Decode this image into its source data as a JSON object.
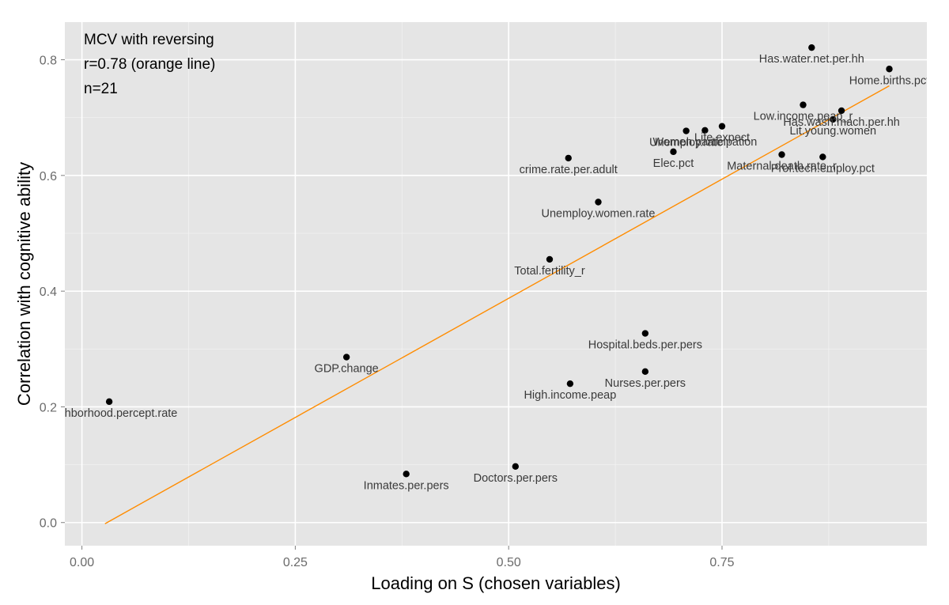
{
  "chart_data": {
    "type": "scatter",
    "xlabel": "Loading on S (chosen variables)",
    "ylabel": "Correlation with cognitive ability",
    "xlim": [
      -0.02,
      0.99
    ],
    "ylim": [
      -0.04,
      0.865
    ],
    "xticks": [
      0.0,
      0.25,
      0.5,
      0.75
    ],
    "xtick_labels": [
      "0.00",
      "0.25",
      "0.50",
      "0.75"
    ],
    "yticks": [
      0.0,
      0.2,
      0.4,
      0.6,
      0.8
    ],
    "ytick_labels": [
      "0.0",
      "0.2",
      "0.4",
      "0.6",
      "0.8"
    ],
    "grid": true,
    "annotations": [
      "MCV with reversing",
      "r=0.78 (orange line)",
      "n=21"
    ],
    "fit_line": {
      "color": "#ff8c00",
      "x": [
        0.027,
        0.946
      ],
      "y": [
        -0.002,
        0.755
      ]
    },
    "points": [
      {
        "label": "Has.water.net.per.hh",
        "x": 0.855,
        "y": 0.821
      },
      {
        "label": "Home.births.pct",
        "x": 0.946,
        "y": 0.784
      },
      {
        "label": "Low.income.peap_r",
        "x": 0.845,
        "y": 0.722
      },
      {
        "label": "Has.wash.mach.per.hh",
        "x": 0.89,
        "y": 0.712
      },
      {
        "label": "Lit.young.women",
        "x": 0.88,
        "y": 0.697
      },
      {
        "label": "Life.expect",
        "x": 0.75,
        "y": 0.685
      },
      {
        "label": "Women.participation",
        "x": 0.73,
        "y": 0.678
      },
      {
        "label": "Unemploy.rate",
        "x": 0.708,
        "y": 0.677
      },
      {
        "label": "Elec.pct",
        "x": 0.693,
        "y": 0.641
      },
      {
        "label": "Maternal.death.rate_r",
        "x": 0.82,
        "y": 0.636
      },
      {
        "label": "Prof.tech.employ.pct",
        "x": 0.868,
        "y": 0.632
      },
      {
        "label": "crime.rate.per.adult",
        "x": 0.57,
        "y": 0.63
      },
      {
        "label": "Unemploy.women.rate",
        "x": 0.605,
        "y": 0.554
      },
      {
        "label": "Total.fertility_r",
        "x": 0.548,
        "y": 0.455
      },
      {
        "label": "Hospital.beds.per.pers",
        "x": 0.66,
        "y": 0.327
      },
      {
        "label": "GDP.change",
        "x": 0.31,
        "y": 0.286
      },
      {
        "label": "Nurses.per.pers",
        "x": 0.66,
        "y": 0.261
      },
      {
        "label": "High.income.peap",
        "x": 0.572,
        "y": 0.24
      },
      {
        "label": "Neighborhood.percept.rate",
        "x": 0.032,
        "y": 0.209
      },
      {
        "label": "Doctors.per.pers",
        "x": 0.508,
        "y": 0.097
      },
      {
        "label": "Inmates.per.pers",
        "x": 0.38,
        "y": 0.084
      }
    ]
  }
}
